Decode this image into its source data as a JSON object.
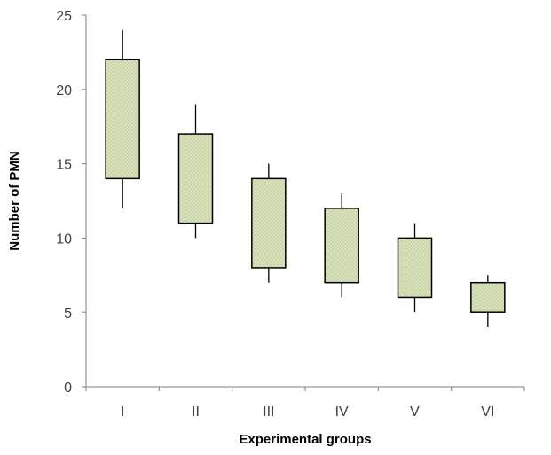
{
  "chart_data": {
    "type": "box",
    "title": "",
    "xlabel": "Experimental groups",
    "ylabel": "Number of PMN",
    "ylim": [
      0,
      25
    ],
    "yticks": [
      0,
      5,
      10,
      15,
      20,
      25
    ],
    "grid": false,
    "legend": "none",
    "categories": [
      "I",
      "II",
      "III",
      "IV",
      "V",
      "VI"
    ],
    "series": [
      {
        "min": [
          12,
          10,
          7,
          6,
          5,
          4
        ],
        "q1": [
          14,
          11,
          8,
          7,
          6,
          5
        ],
        "q3": [
          22,
          17,
          14,
          12,
          10,
          7
        ],
        "max": [
          24,
          19,
          15,
          13,
          11,
          7.5
        ]
      }
    ],
    "colors": {
      "box_fill": "#c8d4a3",
      "box_pattern_dot": "#e9eed8",
      "box_stroke": "#000000",
      "axis": "#7f7f7f"
    }
  }
}
